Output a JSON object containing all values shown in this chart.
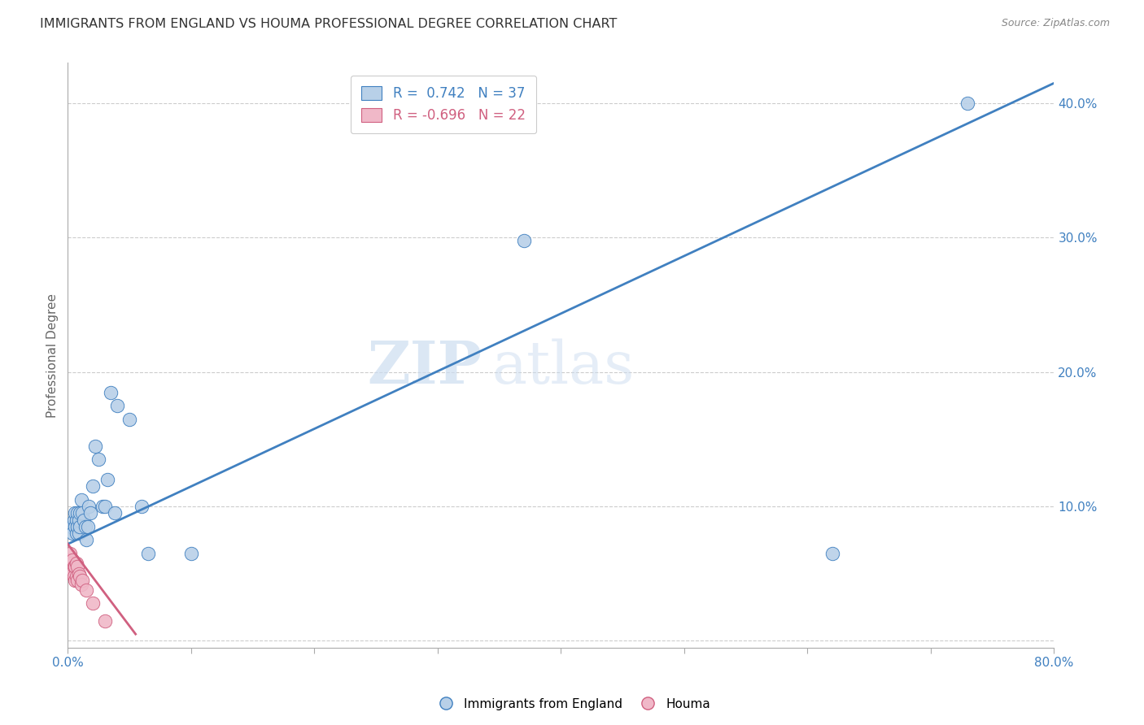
{
  "title": "IMMIGRANTS FROM ENGLAND VS HOUMA PROFESSIONAL DEGREE CORRELATION CHART",
  "source": "Source: ZipAtlas.com",
  "ylabel": "Professional Degree",
  "xlim": [
    0.0,
    0.8
  ],
  "ylim": [
    -0.005,
    0.43
  ],
  "xticks": [
    0.0,
    0.1,
    0.2,
    0.3,
    0.4,
    0.5,
    0.6,
    0.7,
    0.8
  ],
  "xticklabels_show": [
    "0.0%",
    "80.0%"
  ],
  "xticklabels_show_pos": [
    0.0,
    0.8
  ],
  "yticks": [
    0.0,
    0.1,
    0.2,
    0.3,
    0.4
  ],
  "yticklabels": [
    "",
    "10.0%",
    "20.0%",
    "30.0%",
    "40.0%"
  ],
  "blue_R": "0.742",
  "blue_N": "37",
  "pink_R": "-0.696",
  "pink_N": "22",
  "blue_color": "#b8d0e8",
  "blue_line_color": "#4080c0",
  "pink_color": "#f0b8c8",
  "pink_line_color": "#d06080",
  "watermark_zip": "ZIP",
  "watermark_atlas": "atlas",
  "blue_scatter_x": [
    0.003,
    0.004,
    0.005,
    0.006,
    0.006,
    0.007,
    0.007,
    0.008,
    0.008,
    0.009,
    0.009,
    0.01,
    0.01,
    0.011,
    0.012,
    0.013,
    0.014,
    0.015,
    0.016,
    0.017,
    0.018,
    0.02,
    0.022,
    0.025,
    0.028,
    0.03,
    0.032,
    0.035,
    0.038,
    0.04,
    0.05,
    0.06,
    0.065,
    0.1,
    0.37,
    0.62,
    0.73
  ],
  "blue_scatter_y": [
    0.085,
    0.08,
    0.09,
    0.085,
    0.095,
    0.08,
    0.09,
    0.085,
    0.095,
    0.08,
    0.09,
    0.085,
    0.095,
    0.105,
    0.095,
    0.09,
    0.085,
    0.075,
    0.085,
    0.1,
    0.095,
    0.115,
    0.145,
    0.135,
    0.1,
    0.1,
    0.12,
    0.185,
    0.095,
    0.175,
    0.165,
    0.1,
    0.065,
    0.065,
    0.298,
    0.065,
    0.4
  ],
  "pink_scatter_x": [
    0.001,
    0.002,
    0.002,
    0.003,
    0.003,
    0.004,
    0.004,
    0.005,
    0.005,
    0.006,
    0.006,
    0.007,
    0.007,
    0.008,
    0.008,
    0.009,
    0.01,
    0.011,
    0.012,
    0.015,
    0.02,
    0.03
  ],
  "pink_scatter_y": [
    0.06,
    0.065,
    0.055,
    0.058,
    0.05,
    0.06,
    0.052,
    0.055,
    0.048,
    0.055,
    0.045,
    0.058,
    0.048,
    0.055,
    0.045,
    0.05,
    0.048,
    0.042,
    0.045,
    0.038,
    0.028,
    0.015
  ],
  "blue_line_x": [
    0.0,
    0.8
  ],
  "blue_line_y": [
    0.072,
    0.415
  ],
  "pink_line_x": [
    0.0,
    0.055
  ],
  "pink_line_y": [
    0.072,
    0.005
  ]
}
